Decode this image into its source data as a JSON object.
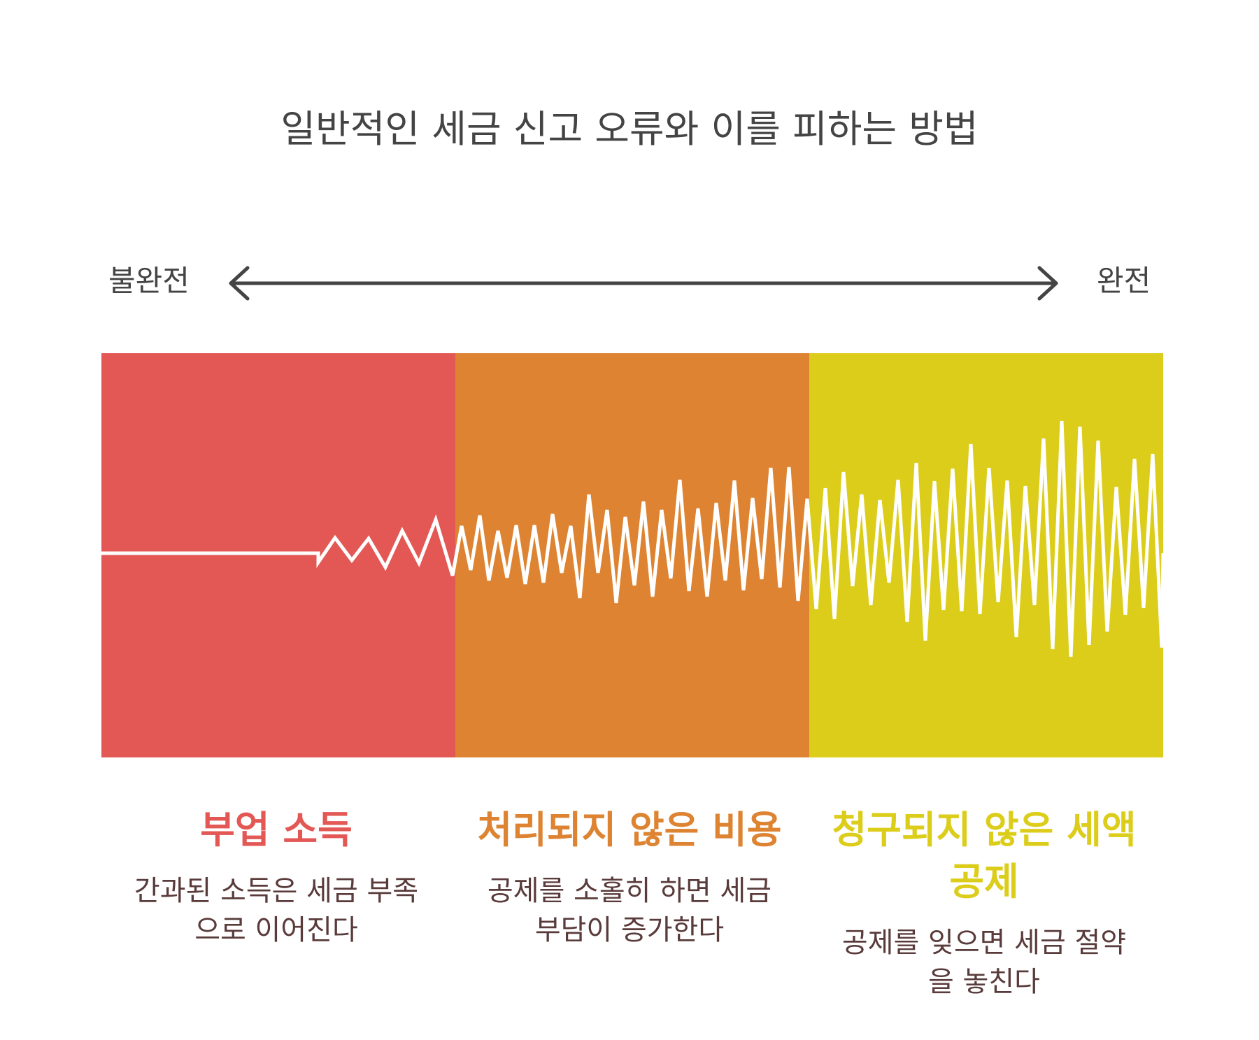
{
  "title": "일반적인 세금 신고 오류와 이를 피하는 방법",
  "scale": {
    "left_label": "불완전",
    "right_label": "완전"
  },
  "colors": {
    "red": "#e35855",
    "orange": "#dd8331",
    "yellow": "#dccd1a",
    "arrow": "#444444",
    "wave": "#ffffff"
  },
  "stages": [
    {
      "heading": "부업 소득",
      "description": "간과된 소득은 세금 부족으로 이어진다",
      "color": "#e35855",
      "icon": "none"
    },
    {
      "heading": "처리되지 않은 비용",
      "description": "공제를 소홀히 하면 세금 부담이 증가한다",
      "color": "#dd8331",
      "icon": "none"
    },
    {
      "heading": "청구되지 않은 세액 공제",
      "description": "공제를 잊으면 세금 절약을 놓친다",
      "color": "#dccd1a",
      "icon": "none"
    }
  ]
}
